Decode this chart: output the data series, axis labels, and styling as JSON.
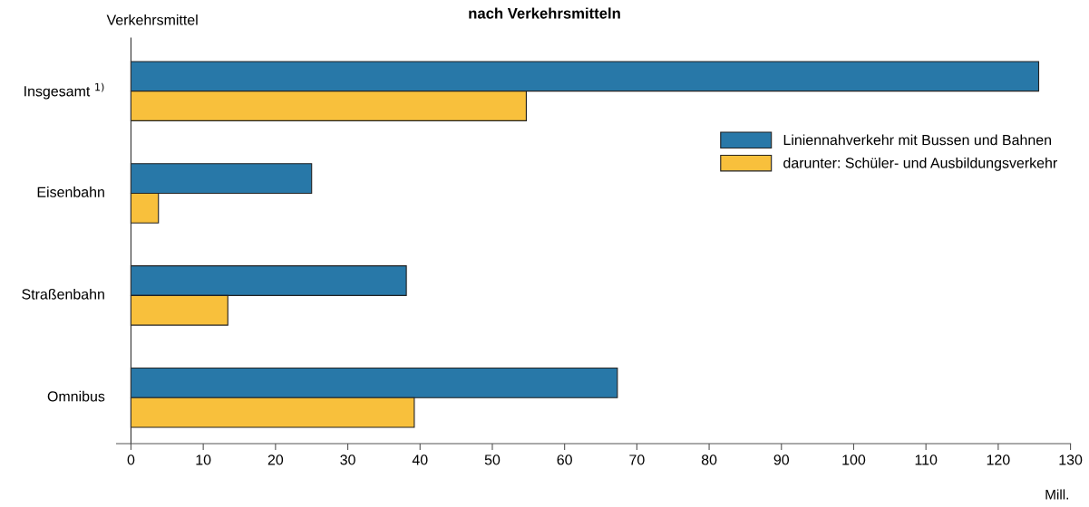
{
  "chart_data": {
    "type": "bar",
    "orientation": "horizontal",
    "title": "nach Verkehrsmitteln",
    "ylabel": "Verkehrsmittel",
    "xlabel": "Mill.",
    "categories": [
      "Insgesamt $^{1)}$",
      "Eisenbahn",
      "Straßenbahn",
      "Omnibus"
    ],
    "series": [
      {
        "name": "Liniennahverkehr mit Bussen und Bahnen",
        "color": "#2878a8",
        "values": [
          125.6,
          25.0,
          38.1,
          67.3
        ]
      },
      {
        "name": "darunter: Schüler- und Ausbildungsverkehr",
        "color": "#f8c03c",
        "values": [
          54.7,
          3.8,
          13.4,
          39.2
        ]
      }
    ],
    "xlim": [
      -2,
      130
    ],
    "xticks": [
      0,
      10,
      20,
      30,
      40,
      50,
      60,
      70,
      80,
      90,
      100,
      110,
      120,
      130
    ],
    "grid": false,
    "legend": "right"
  }
}
